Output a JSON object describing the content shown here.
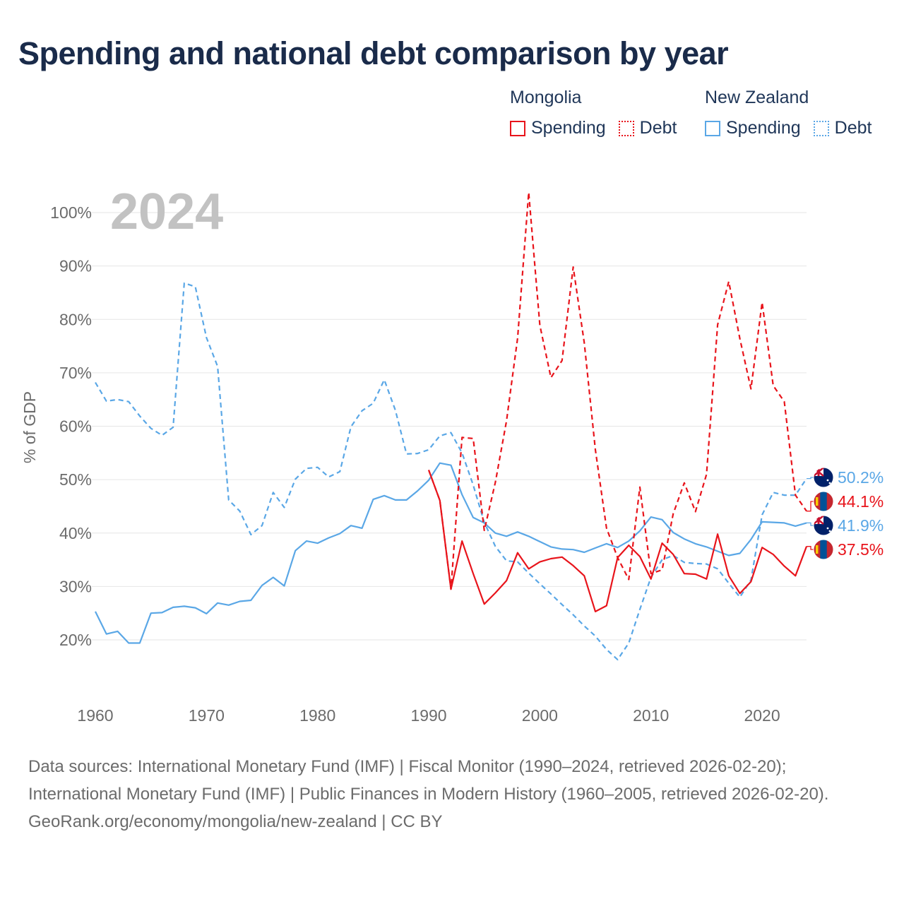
{
  "title": "Spending and national debt comparison by year",
  "legend": {
    "groups": [
      {
        "name": "Mongolia",
        "color": "#e8141b",
        "items": [
          "Spending",
          "Debt"
        ]
      },
      {
        "name": "New Zealand",
        "color": "#5aa7e6",
        "items": [
          "Spending",
          "Debt"
        ]
      }
    ]
  },
  "year_watermark": "2024",
  "chart_data": {
    "type": "line",
    "title": "Spending and national debt comparison by year",
    "ylabel": "% of GDP",
    "xlabel": "",
    "xlim": [
      1960,
      2024
    ],
    "ylim": [
      10,
      105
    ],
    "xticks": [
      1960,
      1970,
      1980,
      1990,
      2000,
      2010,
      2020
    ],
    "yticks": [
      20,
      30,
      40,
      50,
      60,
      70,
      80,
      90,
      100
    ],
    "ytick_labels": [
      "20%",
      "30%",
      "40%",
      "50%",
      "60%",
      "70%",
      "80%",
      "90%",
      "100%"
    ],
    "grid": true,
    "series": [
      {
        "name": "New Zealand Debt",
        "country": "New Zealand",
        "measure": "Debt",
        "color": "#5aa7e6",
        "dashed": true,
        "x": [
          1960,
          1961,
          1962,
          1963,
          1964,
          1965,
          1966,
          1967,
          1968,
          1969,
          1970,
          1971,
          1972,
          1973,
          1974,
          1975,
          1976,
          1977,
          1978,
          1979,
          1980,
          1981,
          1982,
          1983,
          1984,
          1985,
          1986,
          1987,
          1988,
          1989,
          1990,
          1991,
          1992,
          1993,
          1994,
          1995,
          1996,
          1997,
          1998,
          1999,
          2000,
          2001,
          2002,
          2003,
          2004,
          2005,
          2006,
          2007,
          2008,
          2009,
          2010,
          2011,
          2012,
          2013,
          2014,
          2015,
          2016,
          2017,
          2018,
          2019,
          2020,
          2021,
          2022,
          2023,
          2024
        ],
        "y": [
          68.2,
          64.7,
          65.0,
          64.6,
          61.9,
          59.6,
          58.3,
          59.8,
          86.8,
          86.1,
          76.6,
          71.2,
          46.2,
          44.1,
          39.7,
          41.4,
          47.6,
          44.8,
          50.1,
          52.1,
          52.3,
          50.5,
          51.5,
          59.9,
          62.9,
          64.3,
          68.7,
          63.0,
          54.8,
          54.9,
          55.6,
          58.2,
          58.8,
          55.0,
          49.0,
          42.0,
          37.5,
          34.8,
          34.6,
          32.5,
          30.5,
          28.6,
          26.6,
          24.7,
          22.6,
          20.7,
          18.2,
          16.3,
          19.4,
          25.7,
          31.7,
          35.0,
          35.8,
          34.5,
          34.3,
          34.2,
          33.3,
          30.6,
          28.0,
          31.2,
          43.4,
          47.6,
          47.1,
          47.1,
          50.2
        ]
      },
      {
        "name": "New Zealand Spending",
        "country": "New Zealand",
        "measure": "Spending",
        "color": "#5aa7e6",
        "dashed": false,
        "x": [
          1960,
          1961,
          1962,
          1963,
          1964,
          1965,
          1966,
          1967,
          1968,
          1969,
          1970,
          1971,
          1972,
          1973,
          1974,
          1975,
          1976,
          1977,
          1978,
          1979,
          1980,
          1981,
          1982,
          1983,
          1984,
          1985,
          1986,
          1987,
          1988,
          1989,
          1990,
          1991,
          1992,
          1993,
          1994,
          1995,
          1996,
          1997,
          1998,
          1999,
          2000,
          2001,
          2002,
          2003,
          2004,
          2005,
          2006,
          2007,
          2008,
          2009,
          2010,
          2011,
          2012,
          2013,
          2014,
          2015,
          2016,
          2017,
          2018,
          2019,
          2020,
          2021,
          2022,
          2023,
          2024
        ],
        "y": [
          25.3,
          21.1,
          21.6,
          19.4,
          19.4,
          25.0,
          25.1,
          26.1,
          26.3,
          26.0,
          24.9,
          26.9,
          26.5,
          27.2,
          27.4,
          30.2,
          31.7,
          30.1,
          36.7,
          38.5,
          38.1,
          39.1,
          39.9,
          41.4,
          40.9,
          46.3,
          47.0,
          46.2,
          46.2,
          47.9,
          49.9,
          53.1,
          52.7,
          47.2,
          42.9,
          41.9,
          40.0,
          39.4,
          40.2,
          39.4,
          38.4,
          37.4,
          37.0,
          36.9,
          36.4,
          37.2,
          38.0,
          37.3,
          38.5,
          40.4,
          43.0,
          42.5,
          40.1,
          38.9,
          38.0,
          37.4,
          36.6,
          35.8,
          36.2,
          38.8,
          42.1,
          42.0,
          41.9,
          41.3,
          41.9
        ]
      },
      {
        "name": "Mongolia Debt",
        "country": "Mongolia",
        "measure": "Debt",
        "color": "#e8141b",
        "dashed": true,
        "x": [
          1990,
          1991,
          1992,
          1993,
          1994,
          1995,
          1996,
          1997,
          1998,
          1999,
          2000,
          2001,
          2002,
          2003,
          2004,
          2005,
          2006,
          2007,
          2008,
          2009,
          2010,
          2011,
          2012,
          2013,
          2014,
          2015,
          2016,
          2017,
          2018,
          2019,
          2020,
          2021,
          2022,
          2023,
          2024
        ],
        "y": [
          51.8,
          46.1,
          29.5,
          57.9,
          57.7,
          40.5,
          49.5,
          61.0,
          76.5,
          103.8,
          78.9,
          69.1,
          72.3,
          89.8,
          75.6,
          55.6,
          40.9,
          35.4,
          31.3,
          48.6,
          32.4,
          33.1,
          43.6,
          49.4,
          44.0,
          51.0,
          79.0,
          87.1,
          76.4,
          67.0,
          83.2,
          67.6,
          64.6,
          47.1,
          44.1
        ]
      },
      {
        "name": "Mongolia Spending",
        "country": "Mongolia",
        "measure": "Spending",
        "color": "#e8141b",
        "dashed": false,
        "x": [
          1990,
          1991,
          1992,
          1993,
          1994,
          1995,
          1996,
          1997,
          1998,
          1999,
          2000,
          2001,
          2002,
          2003,
          2004,
          2005,
          2006,
          2007,
          2008,
          2009,
          2010,
          2011,
          2012,
          2013,
          2014,
          2015,
          2016,
          2017,
          2018,
          2019,
          2020,
          2021,
          2022,
          2023,
          2024
        ],
        "y": [
          51.8,
          46.1,
          29.5,
          38.5,
          32.4,
          26.7,
          28.8,
          31.1,
          36.3,
          33.3,
          34.6,
          35.2,
          35.5,
          33.9,
          32.0,
          25.3,
          26.4,
          35.4,
          37.7,
          35.6,
          31.4,
          38.1,
          36.0,
          32.4,
          32.3,
          31.4,
          39.8,
          32.0,
          28.7,
          30.9,
          37.3,
          36.0,
          33.8,
          32.0,
          37.5
        ]
      }
    ],
    "end_labels": [
      {
        "text": "50.2%",
        "value": 50.2,
        "country": "New Zealand",
        "color": "#5aa7e6"
      },
      {
        "text": "44.1%",
        "value": 44.1,
        "country": "Mongolia",
        "color": "#e8141b"
      },
      {
        "text": "41.9%",
        "value": 41.9,
        "country": "New Zealand",
        "color": "#5aa7e6"
      },
      {
        "text": "37.5%",
        "value": 37.5,
        "country": "Mongolia",
        "color": "#e8141b"
      }
    ]
  },
  "footer": {
    "sources": "Data sources: International Monetary Fund (IMF) | Fiscal Monitor (1990–2024, retrieved 2026-02-20); International Monetary Fund (IMF) | Public Finances in Modern History (1960–2005, retrieved 2026-02-20).",
    "credit": "GeoRank.org/economy/mongolia/new-zealand | CC BY"
  }
}
